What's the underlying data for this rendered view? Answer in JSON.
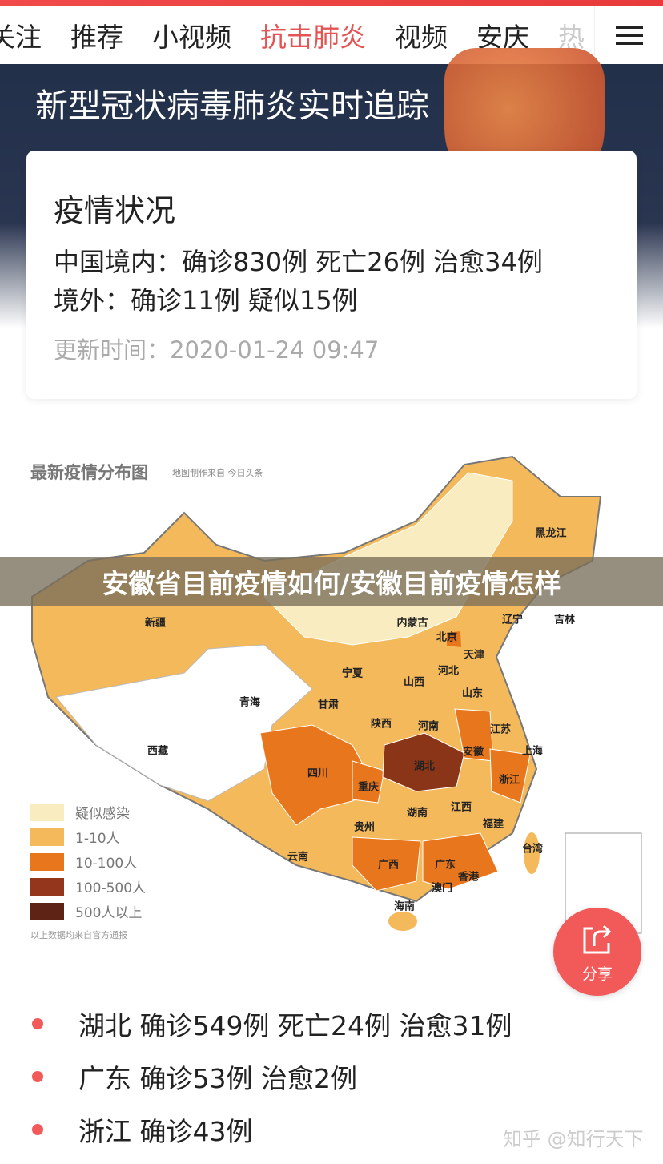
{
  "tabs": [
    "关注",
    "推荐",
    "小视频",
    "抗击肺炎",
    "视频",
    "安庆",
    "热"
  ],
  "active_tab": "抗击肺炎",
  "hero": {
    "title": "新型冠状病毒肺炎实时追踪"
  },
  "status_card": {
    "heading": "疫情状况",
    "domestic": "中国境内：确诊830例 死亡26例 治愈34例",
    "overseas": "境外：确诊11例 疑似15例",
    "updated": "更新时间：2020-01-24 09:47"
  },
  "map": {
    "title": "最新疫情分布图",
    "source": "地图制作来自 今日头条",
    "note": "以上数据均来自官方通报",
    "legend": [
      {
        "label": "疑似感染",
        "color": "#f8ecc0"
      },
      {
        "label": "1-10人",
        "color": "#f3b95a"
      },
      {
        "label": "10-100人",
        "color": "#e8761c"
      },
      {
        "label": "100-500人",
        "color": "#93361c"
      },
      {
        "label": "500人以上",
        "color": "#5e2314"
      }
    ],
    "provinces": [
      "黑龙江",
      "吉林",
      "辽宁",
      "内蒙古",
      "北京",
      "天津",
      "河北",
      "新疆",
      "宁夏",
      "山西",
      "山东",
      "甘肃",
      "青海",
      "陕西",
      "河南",
      "江苏",
      "安徽",
      "上海",
      "西藏",
      "四川",
      "湖北",
      "重庆",
      "浙江",
      "湖南",
      "江西",
      "贵州",
      "福建",
      "台湾",
      "云南",
      "广西",
      "广东",
      "香港",
      "澳门",
      "海南"
    ]
  },
  "banner": "安徽省目前疫情如何/安徽目前疫情怎样",
  "share": {
    "label": "分享"
  },
  "list": [
    "湖北 确诊549例 死亡24例 治愈31例",
    "广东 确诊53例 治愈2例",
    "浙江 确诊43例"
  ],
  "watermark": "知乎 @知行天下"
}
